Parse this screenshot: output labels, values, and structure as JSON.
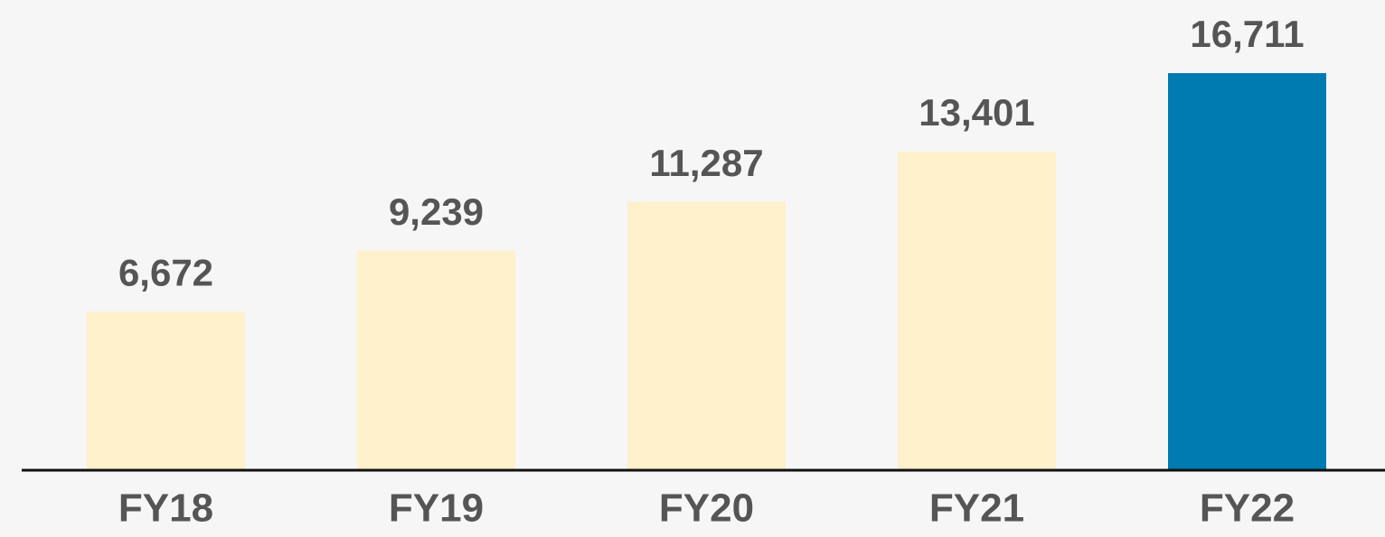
{
  "chart_data": {
    "type": "bar",
    "categories": [
      "FY18",
      "FY19",
      "FY20",
      "FY21",
      "FY22"
    ],
    "values": [
      6672,
      9239,
      11287,
      13401,
      16711
    ],
    "value_labels": [
      "6,672",
      "9,239",
      "11,287",
      "13,401",
      "16,711"
    ],
    "colors": [
      "#fdf0cb",
      "#fdf0cb",
      "#fdf0cb",
      "#fdf0cb",
      "#007bb1"
    ]
  }
}
